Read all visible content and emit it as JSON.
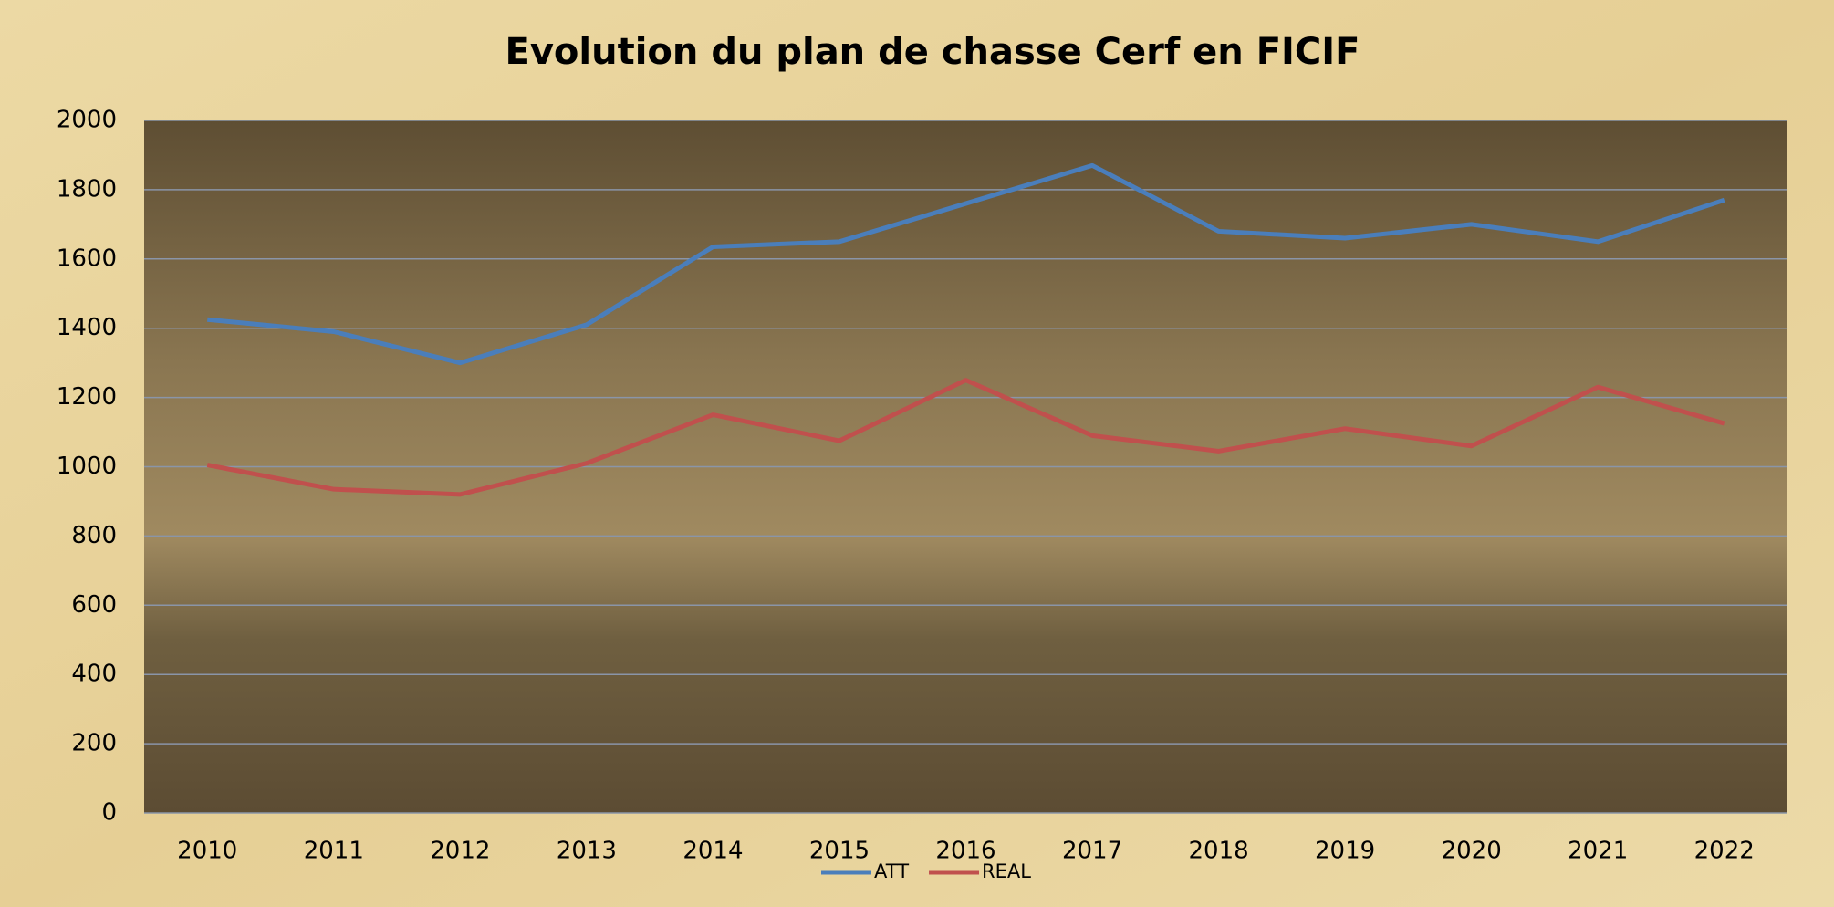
{
  "chart_data": {
    "type": "line",
    "title": "Evolution du plan de chasse Cerf en FICIF",
    "categories": [
      "2010",
      "2011",
      "2012",
      "2013",
      "2014",
      "2015",
      "2016",
      "2017",
      "2018",
      "2019",
      "2020",
      "2021",
      "2022"
    ],
    "series": [
      {
        "name": "ATT",
        "color": "#4a7ebb",
        "values": [
          1425,
          1390,
          1300,
          1410,
          1635,
          1650,
          1760,
          1870,
          1680,
          1660,
          1700,
          1650,
          1770
        ]
      },
      {
        "name": "REAL",
        "color": "#c0504d",
        "values": [
          1005,
          935,
          920,
          1010,
          1150,
          1075,
          1250,
          1090,
          1045,
          1110,
          1060,
          1230,
          1125
        ]
      }
    ],
    "ylim": [
      0,
      2000
    ],
    "yticks": [
      0,
      200,
      400,
      600,
      800,
      1000,
      1200,
      1400,
      1600,
      1800,
      2000
    ],
    "grid": true,
    "legend": "bottom"
  }
}
